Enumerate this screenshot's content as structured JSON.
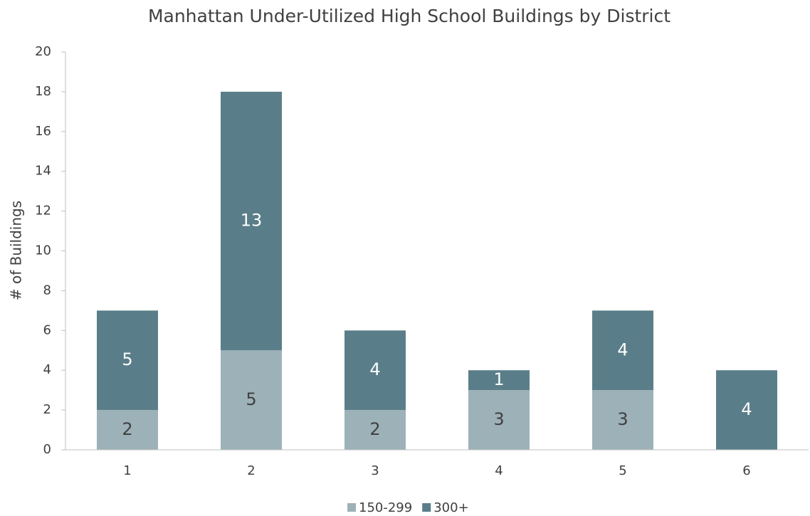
{
  "chart_data": {
    "type": "stacked_bar",
    "title": "Manhattan Under-Utilized High School Buildings by District",
    "y_label": "# of Buildings",
    "categories": [
      "1",
      "2",
      "3",
      "4",
      "5",
      "6"
    ],
    "series": [
      {
        "name": "150-299",
        "color": "#9db1b8",
        "label_color": "#404040",
        "values": [
          2,
          5,
          2,
          3,
          3,
          0
        ]
      },
      {
        "name": "300+",
        "color": "#5a7e89",
        "label_color": "#ffffff",
        "values": [
          5,
          13,
          4,
          1,
          4,
          4
        ]
      }
    ],
    "ylim": [
      0,
      20
    ],
    "yticks": [
      0,
      2,
      4,
      6,
      8,
      10,
      12,
      14,
      16,
      18,
      20
    ],
    "grid": false,
    "legend": "bottom"
  }
}
